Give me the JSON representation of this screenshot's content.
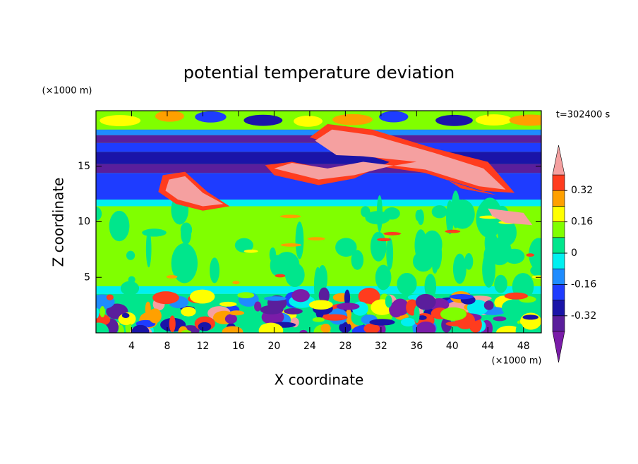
{
  "chart_data": {
    "type": "contour",
    "title": "potential temperature deviation",
    "x_label": "X coordinate",
    "y_label": "Z coordinate",
    "x_unit": "(×1000 m)",
    "y_unit": "(×1000 m)",
    "time_label": "t=302400 s",
    "xlim": [
      0,
      50
    ],
    "xticks": [
      4,
      8,
      12,
      16,
      20,
      24,
      28,
      32,
      36,
      40,
      44,
      48
    ],
    "ylim": [
      0,
      20
    ],
    "yticks": [
      5,
      10,
      15
    ],
    "levels": [
      -0.4,
      -0.32,
      -0.24,
      -0.16,
      -0.08,
      0,
      0.08,
      0.16,
      0.24,
      0.32,
      0.4
    ],
    "colors": [
      "#7a1ca8",
      "#5a1e9c",
      "#1a14a8",
      "#1e3cff",
      "#1e8cff",
      "#00f0f0",
      "#00e68c",
      "#80ff00",
      "#ffff00",
      "#ffa000",
      "#ff3c1e",
      "#f5a0a0"
    ],
    "colorbar_ticks": [
      -0.32,
      -0.16,
      0,
      0.16,
      0.32
    ]
  }
}
